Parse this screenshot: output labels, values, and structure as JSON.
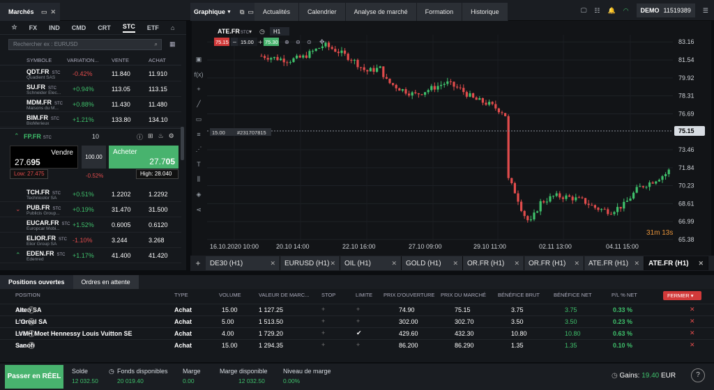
{
  "topbar": {
    "markets_title": "Marchés",
    "graph_title": "Graphique",
    "tabs": [
      "Actualités",
      "Calendrier",
      "Analyse de marché",
      "Formation",
      "Historique"
    ],
    "account_type": "DEMO",
    "account_number": "11519389"
  },
  "markets": {
    "categories": [
      "FX",
      "IND",
      "CMD",
      "CRT",
      "STC",
      "ETF"
    ],
    "selected_category": "STC",
    "search_placeholder": "Rechercher ex : EURUSD",
    "columns": [
      "SYMBOLE",
      "VARIATION...",
      "VENTE",
      "ACHAT"
    ],
    "rows_top": [
      {
        "symbol": "QDT.FR",
        "type": "STC",
        "name": "Quadient SAS",
        "variation": "-0.42%",
        "dir": "neg",
        "bid": "11.840",
        "ask": "11.910"
      },
      {
        "symbol": "SU.FR",
        "type": "STC",
        "name": "Schneider Elec...",
        "variation": "+0.94%",
        "dir": "pos",
        "bid": "113.05",
        "ask": "113.15"
      },
      {
        "symbol": "MDM.FR",
        "type": "STC",
        "name": "Maisons du M...",
        "variation": "+0.88%",
        "dir": "pos",
        "bid": "11.430",
        "ask": "11.480"
      },
      {
        "symbol": "BIM.FR",
        "type": "STC",
        "name": "BioMerieux",
        "variation": "+1.21%",
        "dir": "pos",
        "bid": "133.80",
        "ask": "134.10"
      }
    ],
    "expanded": {
      "symbol": "FP.FR",
      "type": "STC",
      "quantity": "10",
      "sell_label": "Vendre",
      "sell_price_main": "27.6",
      "sell_price_big": "95",
      "lot": "100.00",
      "buy_label": "Acheter",
      "buy_price_main": "27.7",
      "buy_price_big": "05",
      "low": "Low: 27.475",
      "change": "-0.52%",
      "high": "High: 28.040"
    },
    "rows_bottom": [
      {
        "symbol": "TCH.FR",
        "type": "STC",
        "name": "Technicolor SA",
        "variation": "+0.51%",
        "dir": "pos",
        "bid": "1.2202",
        "ask": "1.2292",
        "arrow": ""
      },
      {
        "symbol": "PUB.FR",
        "type": "STC",
        "name": "Publicis Group...",
        "variation": "+0.19%",
        "dir": "pos",
        "bid": "31.470",
        "ask": "31.500",
        "arrow": "⌄"
      },
      {
        "symbol": "EUCAR.FR",
        "type": "STC",
        "name": "Europcar Mobi...",
        "variation": "+1.52%",
        "dir": "pos",
        "bid": "0.6005",
        "ask": "0.6120",
        "arrow": ""
      },
      {
        "symbol": "ELIOR.FR",
        "type": "STC",
        "name": "Elior Group SA",
        "variation": "-1.10%",
        "dir": "neg",
        "bid": "3.244",
        "ask": "3.268",
        "arrow": ""
      },
      {
        "symbol": "EDEN.FR",
        "type": "STC",
        "name": "Edenred",
        "variation": "+1.17%",
        "dir": "pos",
        "bid": "41.400",
        "ask": "41.420",
        "arrow": "⌃"
      }
    ]
  },
  "chart": {
    "symbol": "ATE.FR",
    "type": "STC",
    "timeframe": "H1",
    "bid_tag": "75.15",
    "ask_tag": "75.30",
    "volume": "15.00",
    "position_label": "15.00",
    "position_id": "#231707815",
    "current_price": "75.15",
    "countdown": "31m 13s",
    "price_ticks": [
      "83.16",
      "81.54",
      "79.92",
      "78.31",
      "76.69",
      "73.46",
      "71.84",
      "70.23",
      "68.61",
      "66.99",
      "65.38"
    ],
    "date_ticks": [
      "16.10.2020 10:00",
      "20.10 14:00",
      "22.10 16:00",
      "27.10 09:00",
      "29.10 11:00",
      "02.11 13:00",
      "04.11 15:00"
    ]
  },
  "chart_tabs": [
    {
      "label": "DE30 (H1)",
      "active": false
    },
    {
      "label": "EURUSD (H1)",
      "active": false
    },
    {
      "label": "OIL (H1)",
      "active": false
    },
    {
      "label": "GOLD (H1)",
      "active": false
    },
    {
      "label": "OR.FR (H1)",
      "active": false
    },
    {
      "label": "OR.FR (H1)",
      "active": false
    },
    {
      "label": "ATE.FR (H1)",
      "active": false
    },
    {
      "label": "ATE.FR (H1)",
      "active": true
    }
  ],
  "positions": {
    "tab_open": "Positions ouvertes",
    "tab_pending": "Ordres en attente",
    "columns": [
      "POSITION",
      "TYPE",
      "VOLUME",
      "VALEUR DE MARC...",
      "STOP",
      "LIMITE",
      "PRIX D'OUVERTURE",
      "PRIX DU MARCHÉ",
      "BÉNÉFICE BRUT",
      "BÉNÉFICE NET",
      "P/L % NET"
    ],
    "close_label": "FERMER",
    "rows": [
      {
        "name": "Alten SA",
        "tag": "STC",
        "info": "1",
        "type": "Achat",
        "volume": "15.00",
        "value": "1 127.25",
        "stop": "+",
        "limit": "+",
        "open": "74.90",
        "market": "75.15",
        "gross": "3.75",
        "net": "3.75",
        "pl": "0.33 %"
      },
      {
        "name": "L'Oreal SA",
        "tag": "STC",
        "info": "1",
        "type": "Achat",
        "volume": "5.00",
        "value": "1 513.50",
        "stop": "+",
        "limit": "+",
        "open": "302.00",
        "market": "302.70",
        "gross": "3.50",
        "net": "3.50",
        "pl": "0.23 %"
      },
      {
        "name": "LVMH Moet Hennessy Louis Vuitton SE",
        "tag": "STC",
        "info": "1",
        "type": "Achat",
        "volume": "4.00",
        "value": "1 729.20",
        "stop": "+",
        "limit": "✔",
        "open": "429.60",
        "market": "432.30",
        "gross": "10.80",
        "net": "10.80",
        "pl": "0.63 %"
      },
      {
        "name": "Sanofi",
        "tag": "STC",
        "info": "1",
        "type": "Achat",
        "volume": "15.00",
        "value": "1 294.35",
        "stop": "+",
        "limit": "+",
        "open": "86.200",
        "market": "86.290",
        "gross": "1.35",
        "net": "1.35",
        "pl": "0.10 %"
      }
    ]
  },
  "status": {
    "real_button": "Passer en RÉEL",
    "solde_label": "Solde",
    "solde_value": "12 032.50",
    "fonds_label": "Fonds disponibles",
    "fonds_value": "20 019.40",
    "marge_label": "Marge",
    "marge_value": "0.00",
    "marge_dispo_label": "Marge disponible",
    "marge_dispo_value": "12 032.50",
    "niveau_label": "Niveau de marge",
    "niveau_value": "0.00%",
    "gains_label": "Gains:",
    "gains_value": "19.40",
    "gains_currency": "EUR",
    "help": "?"
  },
  "colors": {
    "up": "#3fc06b",
    "down": "#e24c4c",
    "buy": "#48b36e",
    "close": "#d23a3a"
  }
}
